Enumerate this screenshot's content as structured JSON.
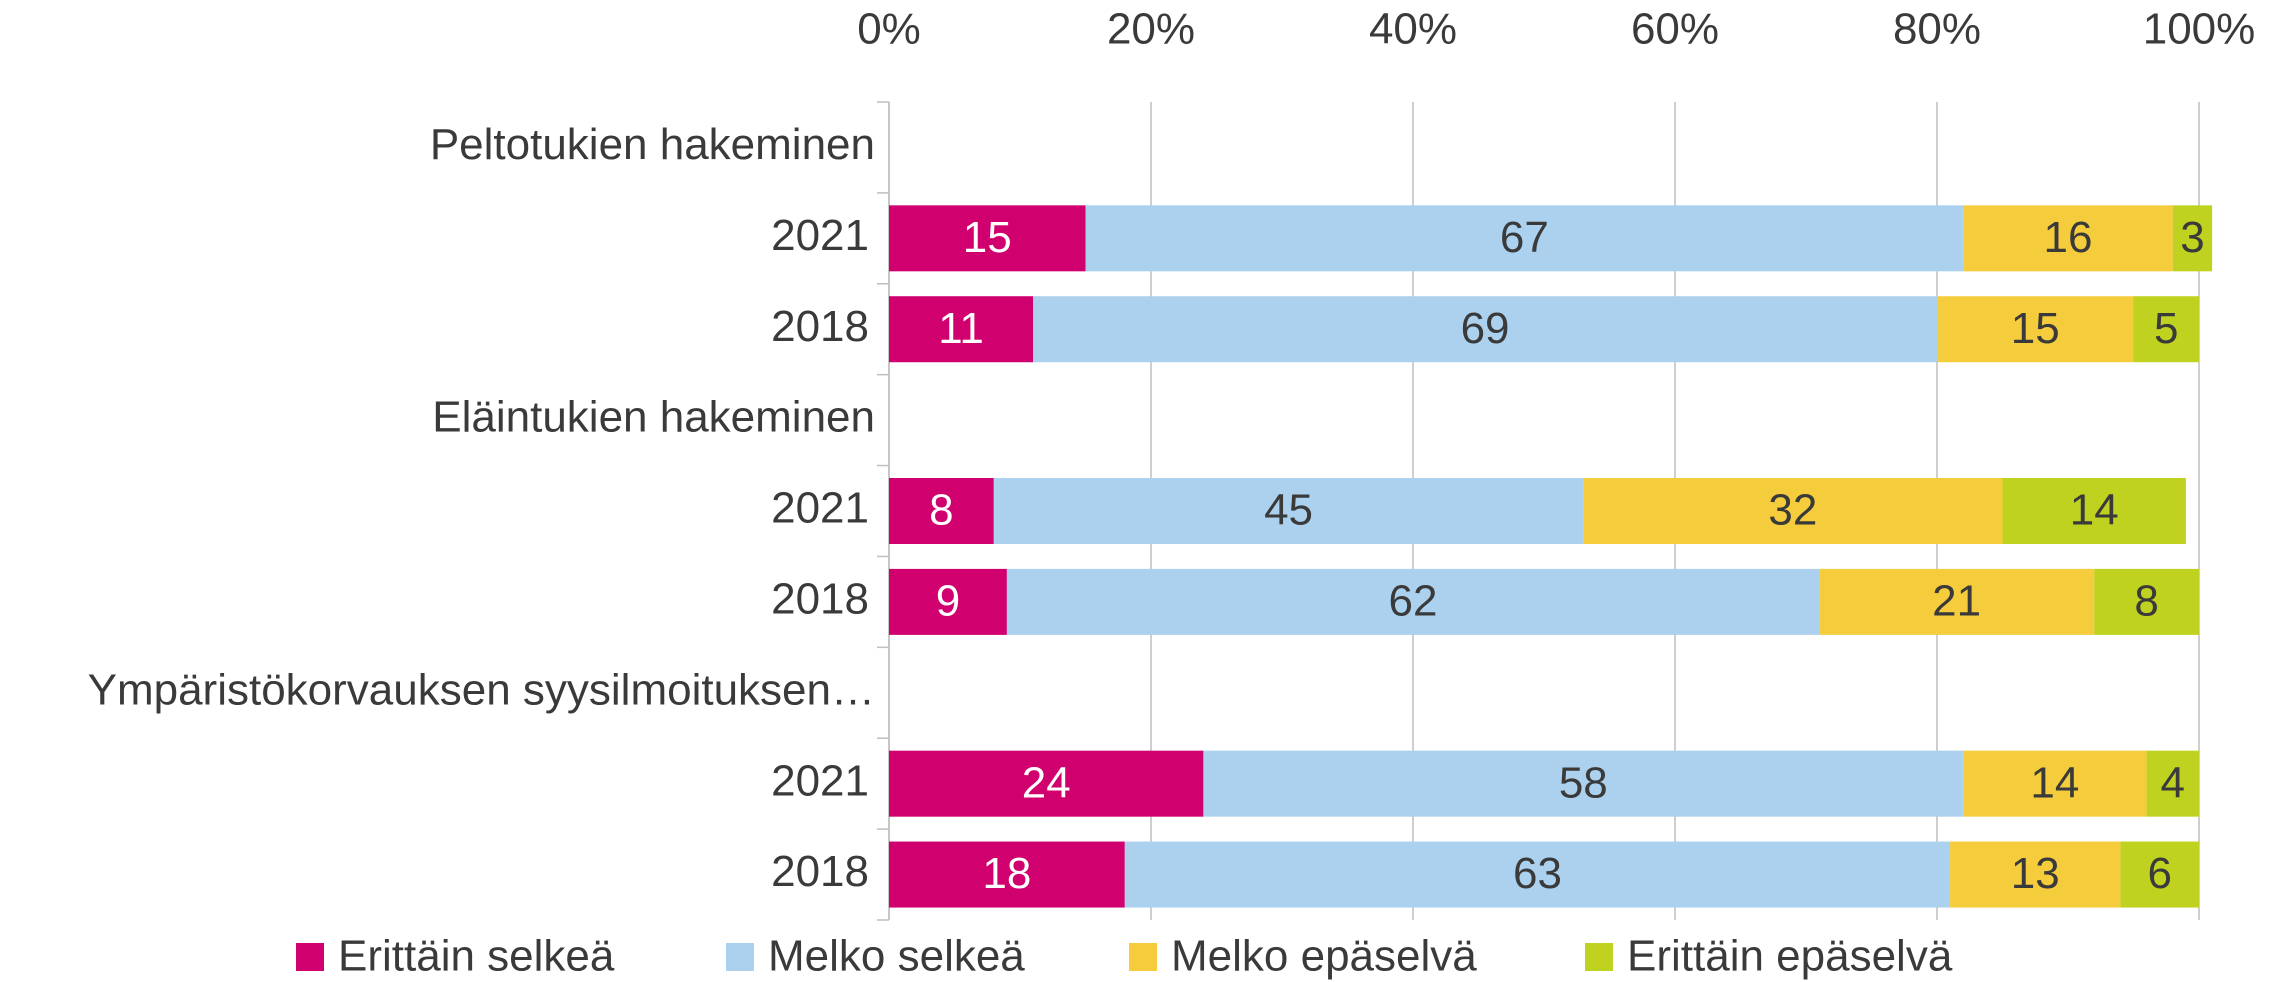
{
  "chart_data": {
    "type": "stacked-bar-horizontal",
    "categories": [
      "Peltotukien hakeminen",
      "2021",
      "2018",
      "Eläintukien hakeminen",
      "2021",
      "2018",
      "Ympäristökorvauksen syysilmoituksen…",
      "2021",
      "2018"
    ],
    "series": [
      {
        "name": "Erittäin selkeä",
        "color": "#d0006f",
        "values": [
          null,
          15,
          11,
          null,
          8,
          9,
          null,
          24,
          18
        ]
      },
      {
        "name": "Melko selkeä",
        "color": "#abd1ee",
        "values": [
          null,
          67,
          69,
          null,
          45,
          62,
          null,
          58,
          63
        ]
      },
      {
        "name": "Melko epäselvä",
        "color": "#f5cc3c",
        "values": [
          null,
          16,
          15,
          null,
          32,
          21,
          null,
          14,
          13
        ]
      },
      {
        "name": "Erittäin epäselvä",
        "color": "#bfd21f",
        "values": [
          null,
          3,
          5,
          null,
          14,
          8,
          null,
          4,
          6
        ]
      }
    ],
    "xlim": [
      0,
      100
    ],
    "xticks": [
      {
        "value": 0,
        "label": "0%"
      },
      {
        "value": 20,
        "label": "20%"
      },
      {
        "value": 40,
        "label": "40%"
      },
      {
        "value": 60,
        "label": "60%"
      },
      {
        "value": 80,
        "label": "80%"
      },
      {
        "value": 100,
        "label": "100%"
      }
    ],
    "grid": true,
    "legend": "bottom"
  }
}
